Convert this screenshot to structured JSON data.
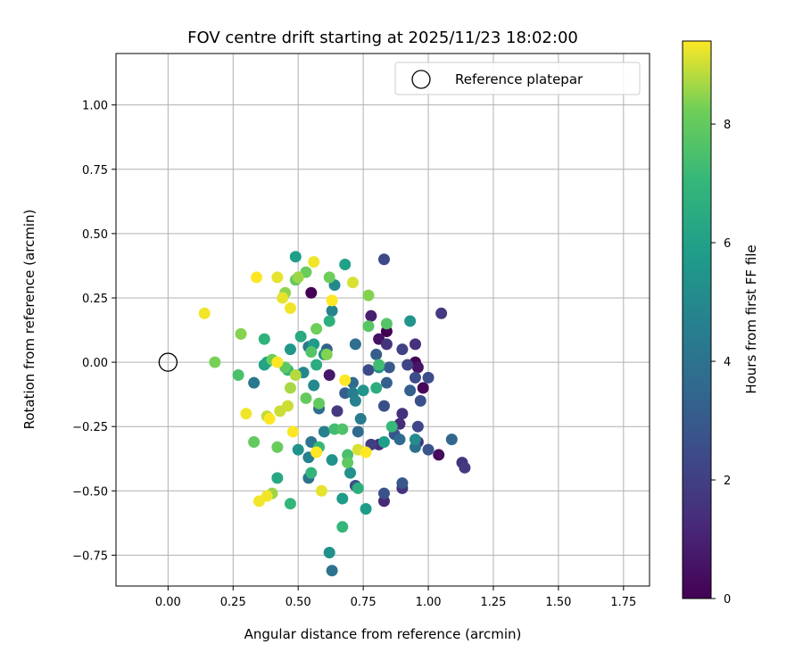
{
  "chart_data": {
    "type": "scatter",
    "title": "FOV centre drift starting at 2025/11/23 18:02:00",
    "xlabel": "Angular distance from reference (arcmin)",
    "ylabel": "Rotation from reference (arcmin)",
    "xlim": [
      -0.2,
      1.85
    ],
    "ylim": [
      -0.87,
      1.2
    ],
    "xticks": [
      0.0,
      0.25,
      0.5,
      0.75,
      1.0,
      1.25,
      1.5,
      1.75
    ],
    "xtick_labels": [
      "0.00",
      "0.25",
      "0.50",
      "0.75",
      "1.00",
      "1.25",
      "1.50",
      "1.75"
    ],
    "yticks": [
      -0.75,
      -0.5,
      -0.25,
      0.0,
      0.25,
      0.5,
      0.75,
      1.0
    ],
    "ytick_labels": [
      "−0.75",
      "−0.50",
      "−0.25",
      "0.00",
      "0.25",
      "0.50",
      "0.75",
      "1.00"
    ],
    "grid": true,
    "legend": {
      "position": "top-right",
      "entries": [
        {
          "label": "Reference platepar",
          "marker": "open-circle"
        }
      ]
    },
    "reference": {
      "x": 0.0,
      "y": 0.0
    },
    "colorbar": {
      "label": "Hours from first FF file",
      "colormap": "viridis",
      "min": 0,
      "max": 9.4,
      "ticks": [
        0,
        2,
        4,
        6,
        8
      ],
      "tick_labels": [
        "0",
        "2",
        "4",
        "6",
        "8"
      ]
    },
    "points": [
      [
        0.55,
        0.27,
        0.0
      ],
      [
        0.84,
        0.12,
        0.0
      ],
      [
        0.95,
        0.0,
        0.1
      ],
      [
        0.98,
        -0.1,
        0.2
      ],
      [
        1.04,
        -0.36,
        0.3
      ],
      [
        0.81,
        0.09,
        0.5
      ],
      [
        0.96,
        -0.02,
        0.6
      ],
      [
        0.62,
        -0.05,
        0.7
      ],
      [
        0.78,
        0.18,
        0.9
      ],
      [
        0.83,
        -0.54,
        1.2
      ],
      [
        0.89,
        -0.24,
        1.3
      ],
      [
        0.81,
        -0.32,
        1.4
      ],
      [
        0.95,
        0.07,
        1.5
      ],
      [
        0.9,
        -0.2,
        1.5
      ],
      [
        0.96,
        -0.31,
        1.5
      ],
      [
        0.84,
        0.07,
        1.6
      ],
      [
        0.9,
        -0.49,
        1.6
      ],
      [
        1.13,
        -0.39,
        1.6
      ],
      [
        0.65,
        -0.19,
        1.8
      ],
      [
        1.05,
        0.19,
        1.8
      ],
      [
        1.14,
        -0.41,
        1.8
      ],
      [
        0.78,
        -0.32,
        2.0
      ],
      [
        0.9,
        0.05,
        2.1
      ],
      [
        0.92,
        -0.01,
        2.2
      ],
      [
        0.96,
        -0.25,
        2.3
      ],
      [
        0.83,
        0.4,
        2.4
      ],
      [
        0.77,
        -0.03,
        2.4
      ],
      [
        0.95,
        -0.06,
        2.5
      ],
      [
        1.0,
        -0.06,
        2.5
      ],
      [
        0.97,
        -0.15,
        2.6
      ],
      [
        0.83,
        -0.17,
        2.6
      ],
      [
        0.83,
        -0.51,
        2.7
      ],
      [
        0.72,
        -0.48,
        2.7
      ],
      [
        1.0,
        -0.34,
        2.8
      ],
      [
        0.87,
        -0.28,
        2.8
      ],
      [
        0.9,
        -0.47,
        2.9
      ],
      [
        0.85,
        -0.02,
        3.0
      ],
      [
        0.8,
        0.03,
        3.1
      ],
      [
        0.68,
        -0.12,
        3.2
      ],
      [
        0.84,
        -0.08,
        3.2
      ],
      [
        0.93,
        -0.11,
        3.2
      ],
      [
        0.61,
        0.05,
        3.3
      ],
      [
        1.09,
        -0.3,
        3.5
      ],
      [
        0.89,
        -0.3,
        3.6
      ],
      [
        0.73,
        -0.27,
        3.6
      ],
      [
        0.71,
        -0.08,
        3.7
      ],
      [
        0.58,
        -0.18,
        3.8
      ],
      [
        0.72,
        0.07,
        3.8
      ],
      [
        0.95,
        -0.33,
        3.9
      ],
      [
        0.54,
        -0.45,
        4.0
      ],
      [
        0.63,
        -0.81,
        4.0
      ],
      [
        0.55,
        -0.31,
        4.1
      ],
      [
        0.33,
        -0.08,
        4.2
      ],
      [
        0.54,
        0.06,
        4.3
      ],
      [
        0.74,
        -0.22,
        4.4
      ],
      [
        0.71,
        -0.12,
        4.5
      ],
      [
        0.6,
        -0.27,
        4.6
      ],
      [
        0.54,
        -0.37,
        4.6
      ],
      [
        0.72,
        -0.15,
        4.7
      ],
      [
        0.63,
        0.2,
        4.8
      ],
      [
        0.52,
        -0.04,
        4.9
      ],
      [
        0.64,
        0.3,
        5.0
      ],
      [
        0.56,
        -0.09,
        5.0
      ],
      [
        0.95,
        -0.3,
        5.1
      ],
      [
        0.81,
        -0.02,
        5.2
      ],
      [
        0.6,
        0.03,
        5.2
      ],
      [
        0.7,
        -0.43,
        5.3
      ],
      [
        0.62,
        -0.74,
        5.3
      ],
      [
        0.5,
        -0.34,
        5.4
      ],
      [
        0.63,
        -0.38,
        5.4
      ],
      [
        0.75,
        -0.11,
        5.5
      ],
      [
        0.93,
        0.16,
        5.5
      ],
      [
        0.47,
        0.05,
        5.6
      ],
      [
        0.56,
        0.07,
        5.7
      ],
      [
        0.76,
        -0.57,
        5.8
      ],
      [
        0.67,
        -0.53,
        5.8
      ],
      [
        0.49,
        0.41,
        5.9
      ],
      [
        0.83,
        -0.31,
        5.9
      ],
      [
        0.68,
        0.38,
        6.0
      ],
      [
        0.37,
        -0.01,
        6.1
      ],
      [
        0.38,
        0.0,
        6.2
      ],
      [
        0.42,
        -0.45,
        6.3
      ],
      [
        0.51,
        0.1,
        6.4
      ],
      [
        0.57,
        -0.01,
        6.5
      ],
      [
        0.8,
        -0.1,
        6.6
      ],
      [
        0.62,
        0.16,
        6.7
      ],
      [
        0.73,
        -0.49,
        6.7
      ],
      [
        0.37,
        0.09,
        6.8
      ],
      [
        0.46,
        -0.03,
        6.9
      ],
      [
        0.55,
        -0.43,
        6.9
      ],
      [
        0.67,
        -0.64,
        7.0
      ],
      [
        0.47,
        -0.55,
        7.0
      ],
      [
        0.86,
        -0.25,
        7.1
      ],
      [
        0.58,
        -0.33,
        7.1
      ],
      [
        0.81,
        -0.01,
        7.3
      ],
      [
        0.64,
        -0.26,
        7.3
      ],
      [
        0.69,
        -0.36,
        7.5
      ],
      [
        0.27,
        -0.05,
        7.5
      ],
      [
        0.67,
        -0.26,
        7.6
      ],
      [
        0.84,
        0.15,
        7.7
      ],
      [
        0.55,
        0.04,
        7.7
      ],
      [
        0.77,
        0.14,
        7.8
      ],
      [
        0.69,
        -0.39,
        7.9
      ],
      [
        0.45,
        -0.02,
        7.9
      ],
      [
        0.33,
        -0.31,
        8.0
      ],
      [
        0.58,
        -0.16,
        8.0
      ],
      [
        0.53,
        -0.14,
        8.0
      ],
      [
        0.49,
        0.32,
        8.0
      ],
      [
        0.53,
        0.35,
        8.1
      ],
      [
        0.42,
        -0.33,
        8.1
      ],
      [
        0.57,
        0.13,
        8.2
      ],
      [
        0.4,
        0.01,
        8.2
      ],
      [
        0.62,
        0.33,
        8.2
      ],
      [
        0.18,
        0.0,
        8.3
      ],
      [
        0.77,
        0.26,
        8.4
      ],
      [
        0.28,
        0.11,
        8.4
      ],
      [
        0.61,
        0.03,
        8.4
      ],
      [
        0.45,
        0.27,
        8.5
      ],
      [
        0.5,
        0.33,
        8.6
      ],
      [
        0.4,
        -0.51,
        8.6
      ],
      [
        0.47,
        -0.1,
        8.7
      ],
      [
        0.49,
        -0.05,
        8.8
      ],
      [
        0.38,
        -0.21,
        8.9
      ],
      [
        0.43,
        -0.19,
        9.0
      ],
      [
        0.46,
        -0.17,
        9.0
      ],
      [
        0.73,
        -0.34,
        9.1
      ],
      [
        0.71,
        0.31,
        9.1
      ],
      [
        0.44,
        0.25,
        9.2
      ],
      [
        0.42,
        0.33,
        9.2
      ],
      [
        0.59,
        -0.5,
        9.2
      ],
      [
        0.38,
        -0.52,
        9.3
      ],
      [
        0.3,
        -0.2,
        9.3
      ],
      [
        0.35,
        -0.54,
        9.3
      ],
      [
        0.14,
        0.19,
        9.3
      ],
      [
        0.47,
        0.21,
        9.3
      ],
      [
        0.56,
        0.39,
        9.3
      ],
      [
        0.57,
        -0.35,
        9.4
      ],
      [
        0.68,
        -0.07,
        9.4
      ],
      [
        0.63,
        0.24,
        9.4
      ],
      [
        0.42,
        -0.0,
        9.4
      ],
      [
        0.34,
        0.33,
        9.4
      ],
      [
        0.39,
        -0.22,
        9.4
      ],
      [
        0.48,
        -0.27,
        9.4
      ],
      [
        0.76,
        -0.35,
        9.4
      ]
    ]
  }
}
